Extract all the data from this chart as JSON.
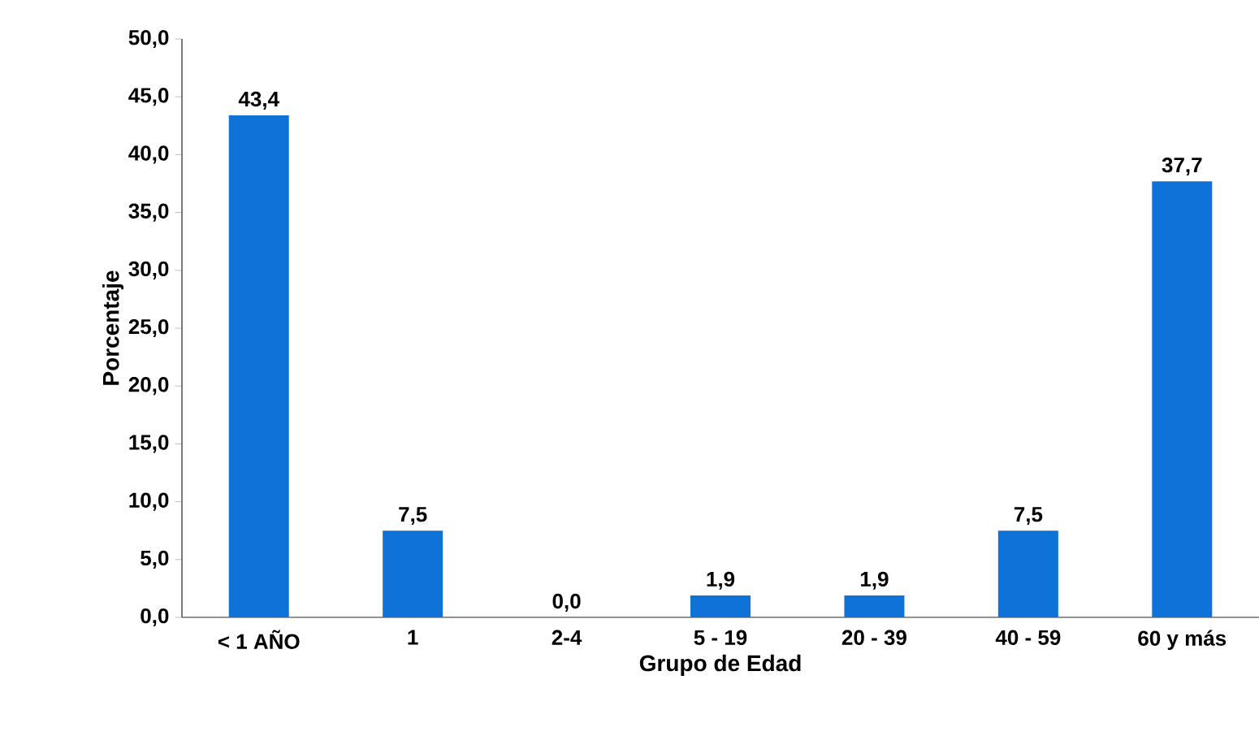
{
  "chart_data": {
    "type": "bar",
    "xlabel": "Grupo de Edad",
    "ylabel": "Porcentaje",
    "categories": [
      "< 1 AÑO",
      "1",
      "2-4",
      "5 - 19",
      "20 - 39",
      "40 - 59",
      "60 y más"
    ],
    "values": [
      43.4,
      7.5,
      0.0,
      1.9,
      1.9,
      7.5,
      37.7
    ],
    "value_labels": [
      "43,4",
      "7,5",
      "0,0",
      "1,9",
      "1,9",
      "7,5",
      "37,7"
    ],
    "color": "#0f72d8",
    "ylim": [
      0,
      50
    ],
    "yticks": [
      {
        "value": 0,
        "label": "0,0"
      },
      {
        "value": 5,
        "label": "5,0"
      },
      {
        "value": 10,
        "label": "10,0"
      },
      {
        "value": 15,
        "label": "15,0"
      },
      {
        "value": 20,
        "label": "20,0"
      },
      {
        "value": 25,
        "label": "25,0"
      },
      {
        "value": 30,
        "label": "30,0"
      },
      {
        "value": 35,
        "label": "35,0"
      },
      {
        "value": 40,
        "label": "40,0"
      },
      {
        "value": 45,
        "label": "45,0"
      },
      {
        "value": 50,
        "label": "50,0"
      }
    ],
    "grid": false
  }
}
